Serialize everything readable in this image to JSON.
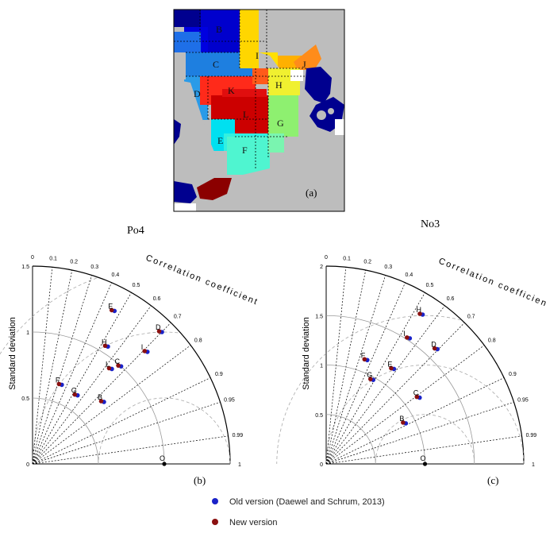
{
  "map": {
    "panel_label": "(a)",
    "region_labels": [
      "B",
      "C",
      "D",
      "E",
      "F",
      "G",
      "H",
      "I",
      "J",
      "K",
      "L"
    ]
  },
  "titles": {
    "left": "Po4",
    "right": "No3"
  },
  "colors": {
    "old": "#1a22c8",
    "new": "#8b1010"
  },
  "legend": {
    "old": "Old version  (Daewel and Schrum, 2013)",
    "new": "New version"
  },
  "chart_data": [
    {
      "type": "scatter",
      "subtype": "taylor-diagram",
      "panel_label": "(b)",
      "ylabel": "Standard deviation",
      "arc_label": "Correlation coefficient",
      "std_ticks": [
        "0",
        "0.5",
        "1",
        "1.5"
      ],
      "std_max": 1.5,
      "ref_std": 1.0,
      "ref_label": "O",
      "corr_ticks": [
        "0",
        "0.1",
        "0.2",
        "0.3",
        "0.4",
        "0.5",
        "0.6",
        "0.7",
        "0.8",
        "0.9",
        "0.95",
        "0.99",
        "1"
      ],
      "points": [
        {
          "label": "E",
          "x": 0.61,
          "y": 1.16,
          "old": true,
          "new": true
        },
        {
          "label": "D",
          "x": 0.97,
          "y": 1.0,
          "old": true,
          "new": true
        },
        {
          "label": "H",
          "x": 0.56,
          "y": 0.89,
          "old": true,
          "new": true
        },
        {
          "label": "I",
          "x": 0.86,
          "y": 0.85,
          "old": true,
          "new": true
        },
        {
          "label": "L",
          "x": 0.59,
          "y": 0.72,
          "old": true,
          "new": true
        },
        {
          "label": "C",
          "x": 0.66,
          "y": 0.74,
          "old": true,
          "new": true
        },
        {
          "label": "F",
          "x": 0.21,
          "y": 0.6,
          "old": true,
          "new": true
        },
        {
          "label": "G",
          "x": 0.33,
          "y": 0.52,
          "old": true,
          "new": true
        },
        {
          "label": "B",
          "x": 0.53,
          "y": 0.47,
          "old": true,
          "new": true
        }
      ]
    },
    {
      "type": "scatter",
      "subtype": "taylor-diagram",
      "panel_label": "(c)",
      "ylabel": "Standard deviation",
      "arc_label": "Correlation coefficient",
      "std_ticks": [
        "0",
        "0.5",
        "1",
        "1.5",
        "2"
      ],
      "std_max": 2.0,
      "ref_std": 1.0,
      "ref_label": "O",
      "corr_ticks": [
        "0",
        "0.1",
        "0.2",
        "0.3",
        "0.4",
        "0.5",
        "0.6",
        "0.7",
        "0.8",
        "0.9",
        "0.95",
        "0.99",
        "1"
      ],
      "points": [
        {
          "label": "H",
          "x": 0.96,
          "y": 1.51,
          "old": true,
          "new": true
        },
        {
          "label": "I",
          "x": 0.83,
          "y": 1.27,
          "old": true,
          "new": true
        },
        {
          "label": "D",
          "x": 1.11,
          "y": 1.16,
          "old": true,
          "new": true
        },
        {
          "label": "F",
          "x": 0.4,
          "y": 1.05,
          "old": true,
          "new": true
        },
        {
          "label": "E",
          "x": 0.67,
          "y": 0.96,
          "old": true,
          "new": true
        },
        {
          "label": "G",
          "x": 0.46,
          "y": 0.85,
          "old": true,
          "new": true
        },
        {
          "label": "C",
          "x": 0.93,
          "y": 0.67,
          "old": true,
          "new": true
        },
        {
          "label": "B",
          "x": 0.79,
          "y": 0.41,
          "old": true,
          "new": true
        }
      ]
    }
  ]
}
